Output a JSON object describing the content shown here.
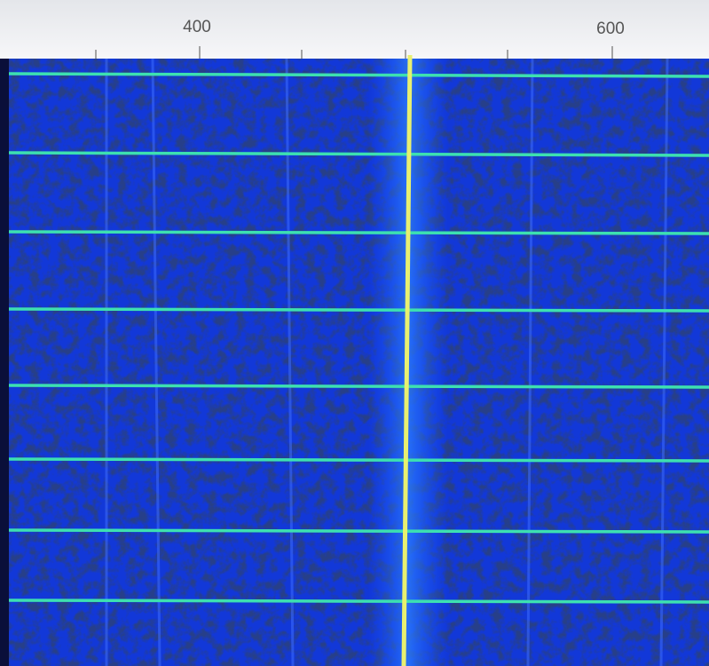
{
  "scale": {
    "labels": [
      "400",
      "600"
    ]
  }
}
